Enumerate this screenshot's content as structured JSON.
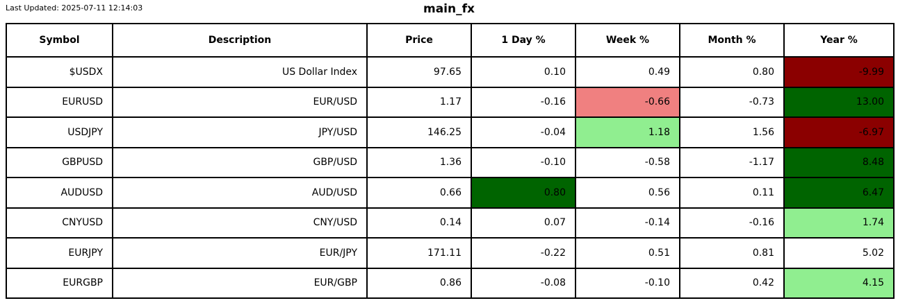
{
  "header": {
    "last_updated": "Last Updated: 2025-07-11 12:14:03"
  },
  "palette": {
    "darkred": "#8b0000",
    "darkgreen": "#006400",
    "lightcoral": "#f08080",
    "lightgreen": "#90ee90",
    "border": "#000000",
    "text": "#000000",
    "background": "#ffffff"
  },
  "chart_data": {
    "type": "table",
    "title": "main_fx",
    "columns": [
      "Symbol",
      "Description",
      "Price",
      "1 Day %",
      "Week %",
      "Month %",
      "Year %"
    ],
    "rows": [
      {
        "symbol": "$USDX",
        "description": "US Dollar Index",
        "price": "97.65",
        "day": "0.10",
        "week": "0.49",
        "month": "0.80",
        "year": "-9.99",
        "cell_colors": {
          "year": "darkred"
        }
      },
      {
        "symbol": "EURUSD",
        "description": "EUR/USD",
        "price": "1.17",
        "day": "-0.16",
        "week": "-0.66",
        "month": "-0.73",
        "year": "13.00",
        "cell_colors": {
          "week": "lightcoral",
          "year": "darkgreen"
        }
      },
      {
        "symbol": "USDJPY",
        "description": "JPY/USD",
        "price": "146.25",
        "day": "-0.04",
        "week": "1.18",
        "month": "1.56",
        "year": "-6.97",
        "cell_colors": {
          "week": "lightgreen",
          "year": "darkred"
        }
      },
      {
        "symbol": "GBPUSD",
        "description": "GBP/USD",
        "price": "1.36",
        "day": "-0.10",
        "week": "-0.58",
        "month": "-1.17",
        "year": "8.48",
        "cell_colors": {
          "year": "darkgreen"
        }
      },
      {
        "symbol": "AUDUSD",
        "description": "AUD/USD",
        "price": "0.66",
        "day": "0.80",
        "week": "0.56",
        "month": "0.11",
        "year": "6.47",
        "cell_colors": {
          "day": "darkgreen",
          "year": "darkgreen"
        }
      },
      {
        "symbol": "CNYUSD",
        "description": "CNY/USD",
        "price": "0.14",
        "day": "0.07",
        "week": "-0.14",
        "month": "-0.16",
        "year": "1.74",
        "cell_colors": {
          "year": "lightgreen"
        }
      },
      {
        "symbol": "EURJPY",
        "description": "EUR/JPY",
        "price": "171.11",
        "day": "-0.22",
        "week": "0.51",
        "month": "0.81",
        "year": "5.02",
        "cell_colors": {}
      },
      {
        "symbol": "EURGBP",
        "description": "EUR/GBP",
        "price": "0.86",
        "day": "-0.08",
        "week": "-0.10",
        "month": "0.42",
        "year": "4.15",
        "cell_colors": {
          "year": "lightgreen"
        }
      }
    ]
  }
}
